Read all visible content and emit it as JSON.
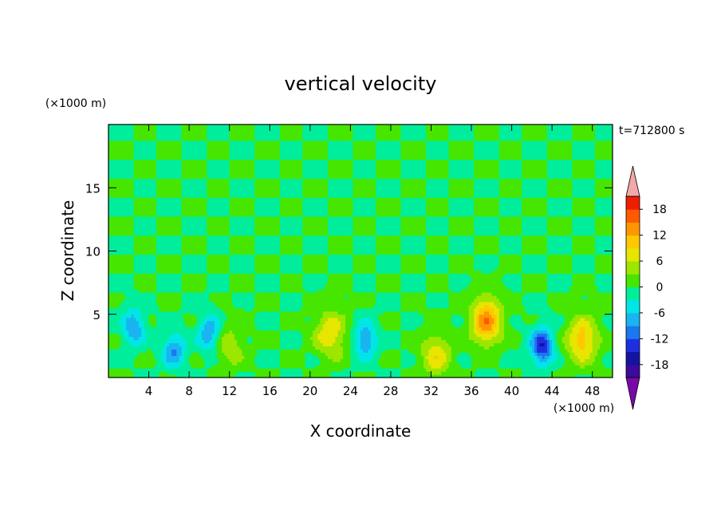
{
  "chart_data": {
    "type": "heatmap",
    "title": "vertical velocity",
    "xlabel": "X coordinate",
    "ylabel": "Z coordinate",
    "x_unit": "(×1000 m)",
    "y_unit": "(×1000 m)",
    "time_label": "t=712800 s",
    "xlim": [
      0,
      50
    ],
    "ylim": [
      0,
      20
    ],
    "x_ticks": [
      4,
      8,
      12,
      16,
      20,
      24,
      28,
      32,
      36,
      40,
      44,
      48
    ],
    "y_ticks": [
      5,
      10,
      15
    ],
    "colorbar": {
      "ticks": [
        18,
        12,
        6,
        0,
        -6,
        -12,
        -18
      ],
      "levels": [
        -21,
        -18,
        -15,
        -12,
        -9,
        -6,
        -3,
        0,
        3,
        6,
        9,
        12,
        15,
        18,
        21
      ],
      "under_color": "#7a0aa8",
      "over_color": "#f4a8a8",
      "colors": [
        "#3c0a9c",
        "#1414a0",
        "#1e2fe0",
        "#1a78f0",
        "#1ab4f0",
        "#00e6e6",
        "#00ee9c",
        "#46e600",
        "#9ce600",
        "#e6e600",
        "#ffc800",
        "#ff9600",
        "#ff5a00",
        "#f01e00"
      ]
    },
    "features": [
      {
        "kind": "updraft",
        "x": 22.0,
        "z": 3.5,
        "peak": 9
      },
      {
        "kind": "updraft",
        "x": 37.5,
        "z": 4.5,
        "peak": 14
      },
      {
        "kind": "updraft",
        "x": 47.0,
        "z": 3.0,
        "peak": 11
      },
      {
        "kind": "updraft",
        "x": 32.5,
        "z": 1.8,
        "peak": 8
      },
      {
        "kind": "updraft",
        "x": 12.0,
        "z": 2.5,
        "peak": 5
      },
      {
        "kind": "downdraft",
        "x": 2.5,
        "z": 4.0,
        "peak": -9
      },
      {
        "kind": "downdraft",
        "x": 10.0,
        "z": 3.5,
        "peak": -9
      },
      {
        "kind": "downdraft",
        "x": 25.5,
        "z": 3.0,
        "peak": -9
      },
      {
        "kind": "downdraft",
        "x": 43.0,
        "z": 2.5,
        "peak": -15
      },
      {
        "kind": "downdraft",
        "x": 6.5,
        "z": 2.2,
        "peak": -9
      }
    ]
  }
}
